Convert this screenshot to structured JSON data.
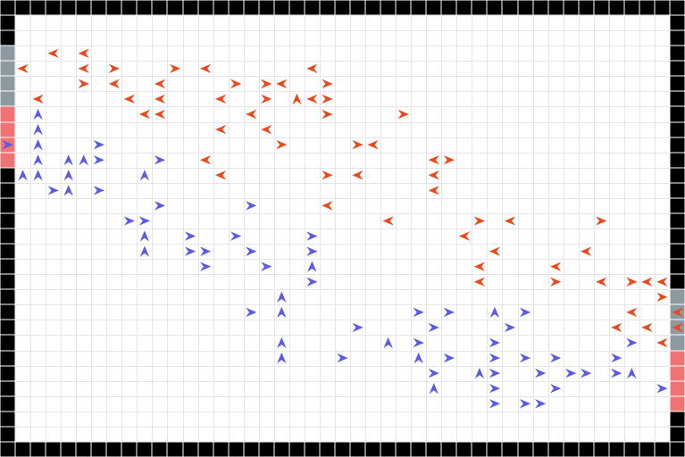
{
  "game": {
    "grid": {
      "cols": 45,
      "rows": 30
    },
    "colors": {
      "background": "#ffffff",
      "grid_line": "#e6e6e6",
      "wall": "#000000",
      "wall_seam": "#ffffff",
      "red_team": "#e8491d",
      "blue_team": "#5a5ae6",
      "spawn_grey": "#8f9aa0",
      "spawn_pink": "#f07272"
    },
    "spawn_zones": [
      {
        "side": "left",
        "color": "spawn_grey",
        "col": 0,
        "rows": [
          3,
          4,
          5,
          6
        ]
      },
      {
        "side": "left",
        "color": "spawn_pink",
        "col": 0,
        "rows": [
          7,
          8,
          9,
          10
        ]
      },
      {
        "side": "right",
        "color": "spawn_grey",
        "col": 44,
        "rows": [
          19,
          20,
          21,
          22
        ]
      },
      {
        "side": "right",
        "color": "spawn_pink",
        "col": 44,
        "rows": [
          23,
          24,
          25,
          26
        ]
      }
    ],
    "red_agents": [
      {
        "c": 3,
        "r": 3,
        "d": "W"
      },
      {
        "c": 5,
        "r": 3,
        "d": "W"
      },
      {
        "c": 1,
        "r": 4,
        "d": "W"
      },
      {
        "c": 5,
        "r": 4,
        "d": "W"
      },
      {
        "c": 7,
        "r": 4,
        "d": "E"
      },
      {
        "c": 11,
        "r": 4,
        "d": "E"
      },
      {
        "c": 13,
        "r": 4,
        "d": "W"
      },
      {
        "c": 20,
        "r": 4,
        "d": "W"
      },
      {
        "c": 5,
        "r": 5,
        "d": "E"
      },
      {
        "c": 7,
        "r": 5,
        "d": "W"
      },
      {
        "c": 10,
        "r": 5,
        "d": "W"
      },
      {
        "c": 15,
        "r": 5,
        "d": "E"
      },
      {
        "c": 17,
        "r": 5,
        "d": "E"
      },
      {
        "c": 18,
        "r": 5,
        "d": "W"
      },
      {
        "c": 21,
        "r": 5,
        "d": "E"
      },
      {
        "c": 2,
        "r": 6,
        "d": "W"
      },
      {
        "c": 8,
        "r": 6,
        "d": "W"
      },
      {
        "c": 10,
        "r": 6,
        "d": "W"
      },
      {
        "c": 14,
        "r": 6,
        "d": "W"
      },
      {
        "c": 17,
        "r": 6,
        "d": "E"
      },
      {
        "c": 19,
        "r": 6,
        "d": "N"
      },
      {
        "c": 20,
        "r": 6,
        "d": "W"
      },
      {
        "c": 21,
        "r": 6,
        "d": "E"
      },
      {
        "c": 9,
        "r": 7,
        "d": "W"
      },
      {
        "c": 10,
        "r": 7,
        "d": "W"
      },
      {
        "c": 16,
        "r": 7,
        "d": "W"
      },
      {
        "c": 21,
        "r": 7,
        "d": "E"
      },
      {
        "c": 26,
        "r": 7,
        "d": "E"
      },
      {
        "c": 14,
        "r": 8,
        "d": "W"
      },
      {
        "c": 17,
        "r": 8,
        "d": "W"
      },
      {
        "c": 18,
        "r": 9,
        "d": "E"
      },
      {
        "c": 23,
        "r": 9,
        "d": "E"
      },
      {
        "c": 24,
        "r": 9,
        "d": "W"
      },
      {
        "c": 13,
        "r": 10,
        "d": "W"
      },
      {
        "c": 28,
        "r": 10,
        "d": "W"
      },
      {
        "c": 29,
        "r": 10,
        "d": "E"
      },
      {
        "c": 14,
        "r": 11,
        "d": "W"
      },
      {
        "c": 21,
        "r": 11,
        "d": "E"
      },
      {
        "c": 23,
        "r": 11,
        "d": "W"
      },
      {
        "c": 28,
        "r": 11,
        "d": "W"
      },
      {
        "c": 28,
        "r": 12,
        "d": "W"
      },
      {
        "c": 21,
        "r": 13,
        "d": "W"
      },
      {
        "c": 25,
        "r": 14,
        "d": "W"
      },
      {
        "c": 31,
        "r": 14,
        "d": "E"
      },
      {
        "c": 33,
        "r": 14,
        "d": "W"
      },
      {
        "c": 39,
        "r": 14,
        "d": "E"
      },
      {
        "c": 30,
        "r": 15,
        "d": "W"
      },
      {
        "c": 32,
        "r": 16,
        "d": "W"
      },
      {
        "c": 38,
        "r": 16,
        "d": "W"
      },
      {
        "c": 31,
        "r": 17,
        "d": "W"
      },
      {
        "c": 36,
        "r": 17,
        "d": "W"
      },
      {
        "c": 31,
        "r": 18,
        "d": "W"
      },
      {
        "c": 36,
        "r": 18,
        "d": "E"
      },
      {
        "c": 39,
        "r": 18,
        "d": "W"
      },
      {
        "c": 41,
        "r": 18,
        "d": "E"
      },
      {
        "c": 42,
        "r": 18,
        "d": "W"
      },
      {
        "c": 43,
        "r": 18,
        "d": "W"
      },
      {
        "c": 43,
        "r": 19,
        "d": "E"
      },
      {
        "c": 41,
        "r": 20,
        "d": "W"
      },
      {
        "c": 44,
        "r": 20,
        "d": "W"
      },
      {
        "c": 40,
        "r": 21,
        "d": "W"
      },
      {
        "c": 42,
        "r": 21,
        "d": "W"
      },
      {
        "c": 44,
        "r": 21,
        "d": "W"
      },
      {
        "c": 43,
        "r": 22,
        "d": "W"
      }
    ],
    "blue_agents": [
      {
        "c": 2,
        "r": 7,
        "d": "N"
      },
      {
        "c": 2,
        "r": 8,
        "d": "N"
      },
      {
        "c": 0,
        "r": 9,
        "d": "E"
      },
      {
        "c": 2,
        "r": 9,
        "d": "N"
      },
      {
        "c": 6,
        "r": 9,
        "d": "E"
      },
      {
        "c": 2,
        "r": 10,
        "d": "N"
      },
      {
        "c": 4,
        "r": 10,
        "d": "N"
      },
      {
        "c": 5,
        "r": 10,
        "d": "N"
      },
      {
        "c": 6,
        "r": 10,
        "d": "E"
      },
      {
        "c": 10,
        "r": 10,
        "d": "E"
      },
      {
        "c": 1,
        "r": 11,
        "d": "N"
      },
      {
        "c": 2,
        "r": 11,
        "d": "N"
      },
      {
        "c": 4,
        "r": 11,
        "d": "N"
      },
      {
        "c": 9,
        "r": 11,
        "d": "N"
      },
      {
        "c": 3,
        "r": 12,
        "d": "E"
      },
      {
        "c": 4,
        "r": 12,
        "d": "N"
      },
      {
        "c": 6,
        "r": 12,
        "d": "E"
      },
      {
        "c": 10,
        "r": 13,
        "d": "E"
      },
      {
        "c": 16,
        "r": 13,
        "d": "E"
      },
      {
        "c": 8,
        "r": 14,
        "d": "E"
      },
      {
        "c": 9,
        "r": 14,
        "d": "E"
      },
      {
        "c": 9,
        "r": 15,
        "d": "N"
      },
      {
        "c": 12,
        "r": 15,
        "d": "E"
      },
      {
        "c": 15,
        "r": 15,
        "d": "E"
      },
      {
        "c": 20,
        "r": 15,
        "d": "E"
      },
      {
        "c": 9,
        "r": 16,
        "d": "N"
      },
      {
        "c": 12,
        "r": 16,
        "d": "E"
      },
      {
        "c": 13,
        "r": 16,
        "d": "E"
      },
      {
        "c": 16,
        "r": 16,
        "d": "E"
      },
      {
        "c": 20,
        "r": 16,
        "d": "E"
      },
      {
        "c": 13,
        "r": 17,
        "d": "E"
      },
      {
        "c": 17,
        "r": 17,
        "d": "E"
      },
      {
        "c": 20,
        "r": 17,
        "d": "N"
      },
      {
        "c": 20,
        "r": 18,
        "d": "E"
      },
      {
        "c": 18,
        "r": 19,
        "d": "N"
      },
      {
        "c": 16,
        "r": 20,
        "d": "E"
      },
      {
        "c": 18,
        "r": 20,
        "d": "N"
      },
      {
        "c": 27,
        "r": 20,
        "d": "E"
      },
      {
        "c": 29,
        "r": 20,
        "d": "E"
      },
      {
        "c": 32,
        "r": 20,
        "d": "N"
      },
      {
        "c": 34,
        "r": 20,
        "d": "E"
      },
      {
        "c": 23,
        "r": 21,
        "d": "E"
      },
      {
        "c": 28,
        "r": 21,
        "d": "E"
      },
      {
        "c": 33,
        "r": 21,
        "d": "E"
      },
      {
        "c": 18,
        "r": 22,
        "d": "N"
      },
      {
        "c": 25,
        "r": 22,
        "d": "N"
      },
      {
        "c": 27,
        "r": 22,
        "d": "E"
      },
      {
        "c": 32,
        "r": 22,
        "d": "E"
      },
      {
        "c": 41,
        "r": 22,
        "d": "E"
      },
      {
        "c": 18,
        "r": 23,
        "d": "N"
      },
      {
        "c": 22,
        "r": 23,
        "d": "E"
      },
      {
        "c": 27,
        "r": 23,
        "d": "N"
      },
      {
        "c": 29,
        "r": 23,
        "d": "E"
      },
      {
        "c": 32,
        "r": 23,
        "d": "E"
      },
      {
        "c": 34,
        "r": 23,
        "d": "E"
      },
      {
        "c": 36,
        "r": 23,
        "d": "E"
      },
      {
        "c": 40,
        "r": 23,
        "d": "E"
      },
      {
        "c": 28,
        "r": 24,
        "d": "E"
      },
      {
        "c": 31,
        "r": 24,
        "d": "N"
      },
      {
        "c": 32,
        "r": 24,
        "d": "E"
      },
      {
        "c": 35,
        "r": 24,
        "d": "E"
      },
      {
        "c": 37,
        "r": 24,
        "d": "E"
      },
      {
        "c": 38,
        "r": 24,
        "d": "E"
      },
      {
        "c": 40,
        "r": 24,
        "d": "E"
      },
      {
        "c": 41,
        "r": 24,
        "d": "N"
      },
      {
        "c": 28,
        "r": 25,
        "d": "N"
      },
      {
        "c": 32,
        "r": 25,
        "d": "E"
      },
      {
        "c": 36,
        "r": 25,
        "d": "E"
      },
      {
        "c": 43,
        "r": 25,
        "d": "E"
      },
      {
        "c": 32,
        "r": 26,
        "d": "E"
      },
      {
        "c": 34,
        "r": 26,
        "d": "E"
      },
      {
        "c": 35,
        "r": 26,
        "d": "E"
      }
    ]
  }
}
